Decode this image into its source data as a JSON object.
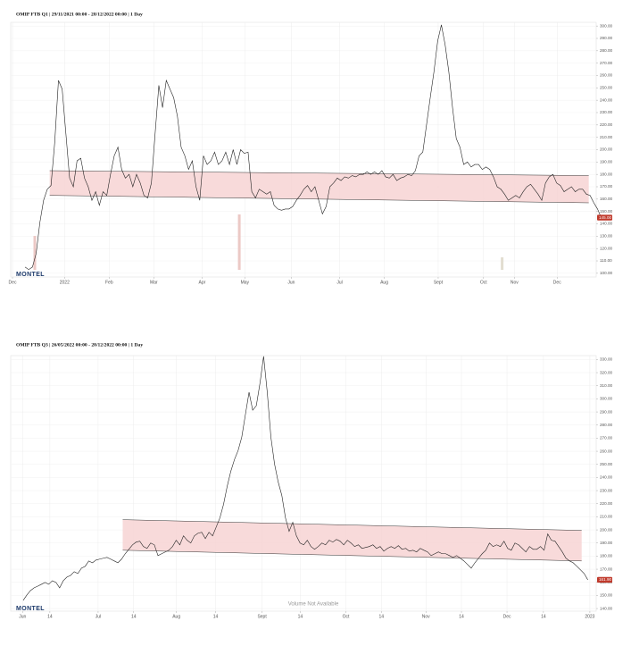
{
  "chart_data": [
    {
      "type": "line",
      "title": "OMIP FTB Q1 | 29/11/2021 00:00 - 28/12/2022 00:00 | 1 Day",
      "logo": "MONTEL",
      "grid": true,
      "xlim": [
        0,
        157
      ],
      "ylim": [
        97,
        303
      ],
      "xticks": [
        {
          "value": 0,
          "label": "Dec"
        },
        {
          "value": 14,
          "label": "2022"
        },
        {
          "value": 26,
          "label": "Feb"
        },
        {
          "value": 38,
          "label": "Mar"
        },
        {
          "value": 51,
          "label": "Apr"
        },
        {
          "value": 62.5,
          "label": "May"
        },
        {
          "value": 75,
          "label": "Jun"
        },
        {
          "value": 88,
          "label": "Jul"
        },
        {
          "value": 100,
          "label": "Aug"
        },
        {
          "value": 114.5,
          "label": "Sept"
        },
        {
          "value": 126.7,
          "label": "Oct"
        },
        {
          "value": 135,
          "label": "Nov"
        },
        {
          "value": 146.5,
          "label": "Dec"
        }
      ],
      "yticks": [
        {
          "value": 100,
          "label": "100.00"
        },
        {
          "value": 110,
          "label": "110.00"
        },
        {
          "value": 120,
          "label": "120.00"
        },
        {
          "value": 130,
          "label": "130.00"
        },
        {
          "value": 140,
          "label": "140.00"
        },
        {
          "value": 150,
          "label": "150.00"
        },
        {
          "value": 160,
          "label": "160.00"
        },
        {
          "value": 170,
          "label": "170.00"
        },
        {
          "value": 180,
          "label": "180.00"
        },
        {
          "value": 190,
          "label": "190.00"
        },
        {
          "value": 200,
          "label": "200.00"
        },
        {
          "value": 210,
          "label": "210.00"
        },
        {
          "value": 220,
          "label": "220.00"
        },
        {
          "value": 230,
          "label": "230.00"
        },
        {
          "value": 240,
          "label": "240.00"
        },
        {
          "value": 250,
          "label": "250.00"
        },
        {
          "value": 260,
          "label": "260.00"
        },
        {
          "value": 270,
          "label": "270.00"
        },
        {
          "value": 280,
          "label": "280.00"
        },
        {
          "value": 290,
          "label": "290.00"
        },
        {
          "value": 300,
          "label": "300.00"
        }
      ],
      "series": [
        {
          "color": "#222222",
          "values": [
            105,
            103,
            105,
            116,
            141,
            159,
            168,
            171,
            206,
            256,
            249,
            213,
            177,
            170,
            191,
            193,
            177,
            170,
            159,
            166,
            155,
            166,
            163,
            180,
            195,
            202,
            184,
            177,
            180,
            170,
            180,
            173,
            163,
            161,
            173,
            213,
            252,
            234,
            256,
            249,
            242,
            227,
            202,
            195,
            184,
            191,
            170,
            159,
            195,
            188,
            191,
            198,
            188,
            191,
            198,
            188,
            200,
            188,
            200,
            197,
            198,
            166,
            161,
            168,
            166,
            164,
            166,
            155,
            152,
            151,
            152,
            152,
            154,
            159,
            163,
            168,
            171,
            166,
            170,
            159,
            148,
            154,
            170,
            173,
            177,
            175,
            178,
            177,
            179,
            178,
            180,
            180,
            182,
            180,
            182,
            180,
            183,
            178,
            177,
            180,
            175,
            177,
            178,
            180,
            179,
            183,
            195,
            198,
            220,
            242,
            263,
            288,
            301,
            285,
            263,
            234,
            209,
            202,
            188,
            190,
            186,
            188,
            188,
            184,
            186,
            184,
            178,
            170,
            168,
            164,
            159,
            161,
            163,
            161,
            166,
            170,
            172,
            168,
            164,
            159,
            173,
            178,
            180,
            173,
            171,
            166,
            168,
            170,
            166,
            168,
            168,
            164,
            163,
            157,
            152,
            145
          ]
        }
      ],
      "channel": {
        "x": [
          10,
          155
        ],
        "upper": [
          183,
          179
        ],
        "lower": [
          163,
          157
        ],
        "color": "#f7d4d4"
      },
      "volume": {
        "x": [
          6,
          61,
          131.7
        ],
        "values": [
          38,
          62,
          14
        ],
        "ylim": [
          0,
          100
        ],
        "colors": [
          "#ecc9c6",
          "#ecc9c6",
          "#e2ddd0"
        ]
      },
      "last_label": "145.00",
      "last_color": "#c0392b"
    },
    {
      "type": "line",
      "title": "OMIP FTB Q3 | 26/05/2022 00:00 - 28/12/2022 00:00 | 1 Day",
      "logo": "MONTEL",
      "grid": true,
      "note": "Volume Not Available",
      "xlim": [
        0,
        160
      ],
      "ylim": [
        138,
        333
      ],
      "xticks": [
        {
          "value": 3,
          "label": "Jun"
        },
        10.5,
        23.75,
        33.5,
        45.25,
        56,
        68.75,
        79.25,
        91.75,
        101.5,
        113.75,
        123.5,
        136,
        146,
        158.75
      ],
      "xtick_labels": [
        "Jun",
        "14",
        "Jul",
        "14",
        "Aug",
        "14",
        "Sept",
        "14",
        "Oct",
        "14",
        "Nov",
        "14",
        "Dec",
        "14",
        "2023"
      ],
      "yticks": [
        {
          "value": 140,
          "label": "140.00"
        },
        {
          "value": 150,
          "label": "150.00"
        },
        {
          "value": 160,
          "label": "160.00"
        },
        {
          "value": 170,
          "label": "170.00"
        },
        {
          "value": 180,
          "label": "180.00"
        },
        {
          "value": 190,
          "label": "190.00"
        },
        {
          "value": 200,
          "label": "200.00"
        },
        {
          "value": 210,
          "label": "210.00"
        },
        {
          "value": 220,
          "label": "220.00"
        },
        {
          "value": 230,
          "label": "230.00"
        },
        {
          "value": 240,
          "label": "240.00"
        },
        {
          "value": 250,
          "label": "250.00"
        },
        {
          "value": 260,
          "label": "260.00"
        },
        {
          "value": 270,
          "label": "270.00"
        },
        {
          "value": 280,
          "label": "280.00"
        },
        {
          "value": 290,
          "label": "290.00"
        },
        {
          "value": 300,
          "label": "300.00"
        },
        {
          "value": 310,
          "label": "310.00"
        },
        {
          "value": 320,
          "label": "320.00"
        },
        {
          "value": 330,
          "label": "330.00"
        }
      ],
      "series": [
        {
          "color": "#222222",
          "values": [
            146.2,
            150.3,
            153.7,
            155.8,
            157.1,
            158.5,
            159.9,
            158.5,
            161.2,
            159.9,
            155.8,
            161.2,
            164,
            165.3,
            168.1,
            166.7,
            170.8,
            172.2,
            176.3,
            174.9,
            177,
            177.7,
            178.4,
            179,
            177.7,
            176.3,
            174.9,
            177.7,
            181.8,
            185.2,
            188.6,
            190.7,
            191.4,
            187.3,
            185.9,
            190,
            188.6,
            180.4,
            181.8,
            183.2,
            184.5,
            187.3,
            192.1,
            188.6,
            195.5,
            192.1,
            190,
            195.5,
            197.5,
            198.2,
            193.4,
            198.2,
            195.5,
            202.3,
            209.2,
            219.5,
            233.2,
            244.8,
            253.7,
            260.6,
            270.8,
            288,
            305.1,
            291.4,
            294.8,
            311.9,
            332.5,
            305.1,
            270.8,
            250.3,
            236.6,
            226.3,
            209.2,
            198.9,
            205.8,
            195.5,
            190,
            188.6,
            192.1,
            187.3,
            185.2,
            187.3,
            190,
            188.6,
            192.1,
            190.7,
            192.7,
            191.4,
            188.6,
            192.1,
            190,
            187.3,
            188.6,
            185.9,
            186.6,
            187.3,
            188.6,
            185.9,
            187.3,
            183.8,
            185.9,
            187.3,
            185.9,
            188,
            185.2,
            185.9,
            183.8,
            184.5,
            183.2,
            185.9,
            184.5,
            183.2,
            180.4,
            181.8,
            183.2,
            181.8,
            181.8,
            180.4,
            179,
            180.4,
            178.4,
            176.3,
            173.6,
            170.8,
            174.9,
            178.4,
            181.8,
            184.5,
            190,
            187.3,
            188.6,
            187.3,
            191.4,
            185.9,
            184.5,
            190,
            188.6,
            185.9,
            183.2,
            187.3,
            185.2,
            185.2,
            187.3,
            184.5,
            196.9,
            192.1,
            191.4,
            187.3,
            183.2,
            178.4,
            176.3,
            174.9,
            172.2,
            169.5,
            166.7,
            161.9
          ]
        }
      ],
      "channel": {
        "x": [
          30.5,
          156.5
        ],
        "upper": [
          207.8,
          199.6
        ],
        "lower": [
          184.5,
          176.3
        ],
        "color": "#f7d4d4"
      },
      "last_label": "161.90",
      "last_color": "#c0392b"
    }
  ]
}
